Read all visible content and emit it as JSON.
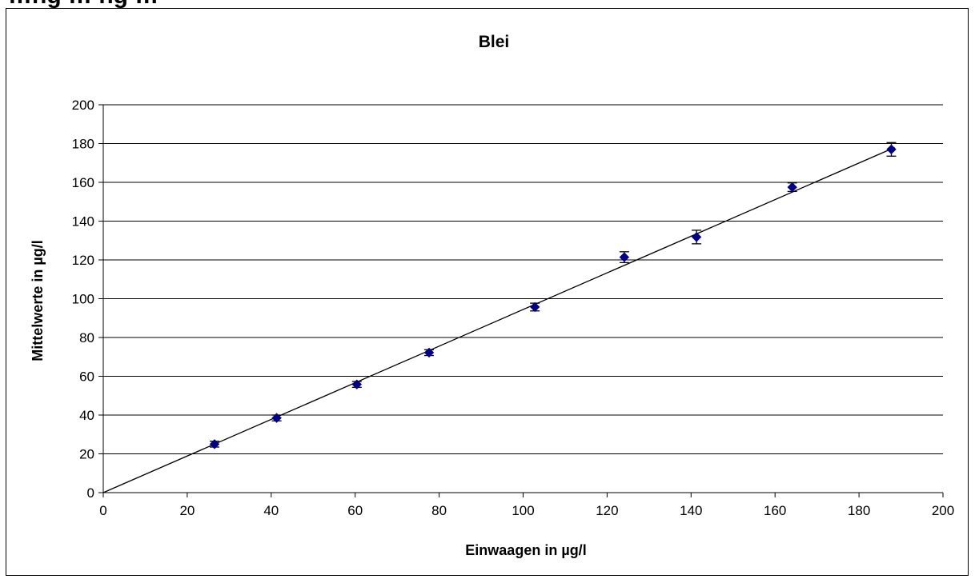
{
  "header_fragment": "…ng … ng …",
  "chart_data": {
    "type": "scatter",
    "title": "Blei",
    "xlabel": "Einwaagen in µg/l",
    "ylabel": "Mittelwerte in µg/l",
    "xlim": [
      0,
      200
    ],
    "ylim": [
      0,
      200
    ],
    "xticks": [
      0,
      20,
      40,
      60,
      80,
      100,
      120,
      140,
      160,
      180,
      200
    ],
    "yticks": [
      0,
      20,
      40,
      60,
      80,
      100,
      120,
      140,
      160,
      180,
      200
    ],
    "grid": "horizontal",
    "marker_color": "#00008b",
    "series": [
      {
        "x": [
          26.5,
          41.3,
          60.4,
          77.6,
          102.8,
          124.1,
          141.3,
          164.1,
          187.7
        ],
        "y": [
          25.0,
          38.5,
          55.8,
          72.2,
          95.7,
          121.4,
          131.8,
          157.5,
          177.0
        ],
        "yerr": [
          1.5,
          1.5,
          1.5,
          1.5,
          2.0,
          2.8,
          3.5,
          2.2,
          3.5
        ]
      }
    ],
    "trendline": {
      "x": [
        0,
        188.5
      ],
      "y": [
        0,
        178
      ]
    }
  }
}
